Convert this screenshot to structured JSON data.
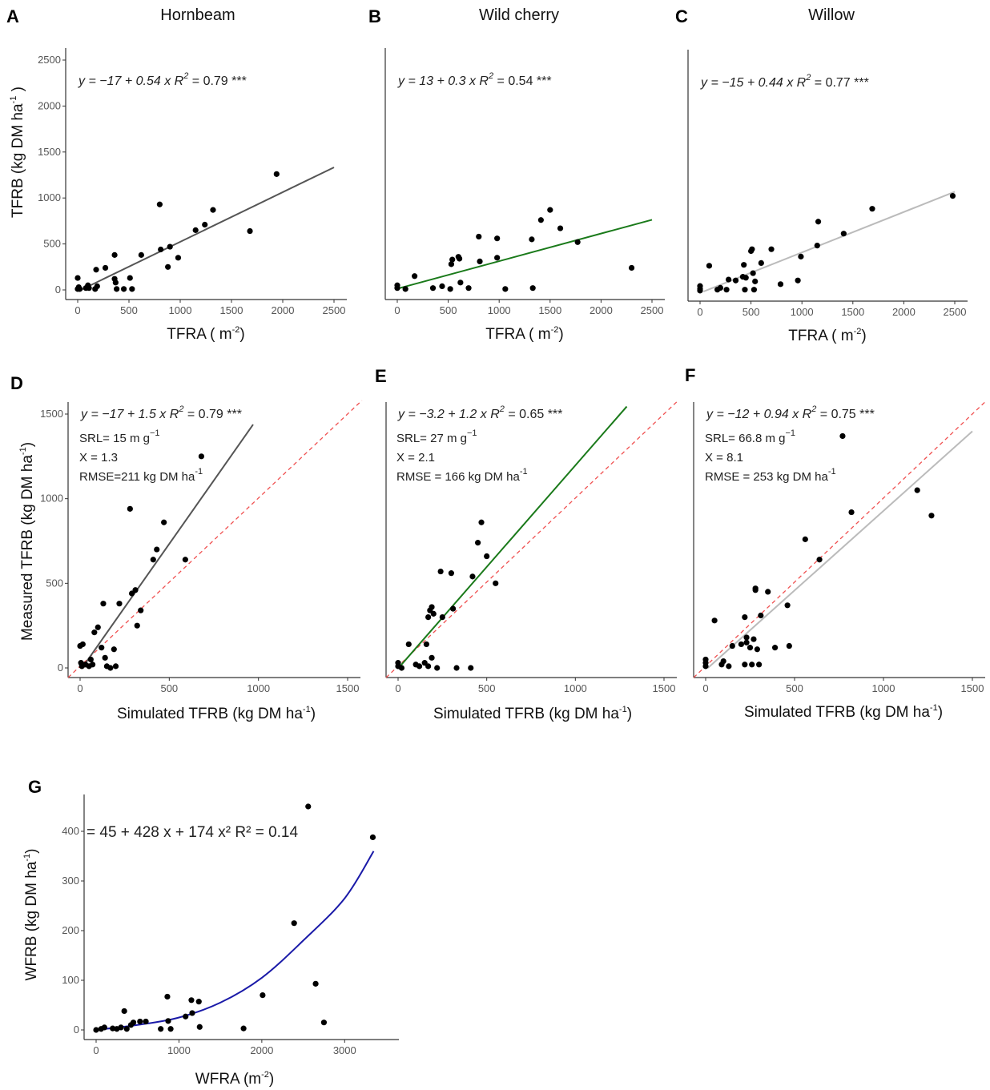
{
  "chart_data": [
    {
      "id": "A",
      "type": "scatter",
      "panel_letter": "A",
      "title": "Hornbeam",
      "xlabel": "TFRA",
      "xlabel_unit": "( m",
      "xlabel_sup": "-2",
      "xlabel_close": ")",
      "ylabel": "TFRB (kg DM ha",
      "ylabel_sup": "-1",
      "ylabel_close": " )",
      "xlim": [
        0,
        2500
      ],
      "ylim": [
        0,
        2500
      ],
      "xticks": [
        0,
        500,
        1000,
        1500,
        2000,
        2500
      ],
      "yticks": [
        0,
        500,
        1000,
        1500,
        2000,
        2500
      ],
      "xtick_labels": [
        "0",
        "500",
        "1000",
        "1500",
        "2000",
        "2500"
      ],
      "ytick_labels": [
        "0",
        "500",
        "1000",
        "1500",
        "2000",
        "2500"
      ],
      "equation": "y = −17 + 0.54 x",
      "r2_label": "R",
      "r2_sup": "2",
      "r2_value": "= 0.79 ***",
      "fit": {
        "intercept": -17,
        "slope": 0.54,
        "x_range": [
          0,
          2500
        ]
      },
      "fit_color": "#555555",
      "identity_line": false,
      "grid": false,
      "points": [
        [
          0,
          10
        ],
        [
          0,
          130
        ],
        [
          10,
          30
        ],
        [
          20,
          10
        ],
        [
          80,
          20
        ],
        [
          100,
          50
        ],
        [
          110,
          20
        ],
        [
          170,
          10
        ],
        [
          180,
          220
        ],
        [
          190,
          40
        ],
        [
          270,
          240
        ],
        [
          360,
          380
        ],
        [
          360,
          120
        ],
        [
          370,
          80
        ],
        [
          380,
          10
        ],
        [
          450,
          10
        ],
        [
          510,
          130
        ],
        [
          530,
          10
        ],
        [
          620,
          380
        ],
        [
          800,
          930
        ],
        [
          810,
          440
        ],
        [
          880,
          250
        ],
        [
          900,
          470
        ],
        [
          980,
          350
        ],
        [
          1150,
          650
        ],
        [
          1240,
          710
        ],
        [
          1320,
          870
        ],
        [
          1680,
          640
        ],
        [
          1940,
          1260
        ]
      ]
    },
    {
      "id": "B",
      "type": "scatter",
      "panel_letter": "B",
      "title": "Wild cherry",
      "xlabel": "TFRA",
      "xlabel_unit": "( m",
      "xlabel_sup": "-2",
      "xlabel_close": ")",
      "xlim": [
        0,
        2500
      ],
      "ylim": [
        0,
        2500
      ],
      "xticks": [
        0,
        500,
        1000,
        1500,
        2000,
        2500
      ],
      "xtick_labels": [
        "0",
        "500",
        "1000",
        "1500",
        "2000",
        "2500"
      ],
      "equation": "y = 13 + 0.3 x",
      "r2_label": "R",
      "r2_sup": "2",
      "r2_value": "= 0.54 ***",
      "fit": {
        "intercept": 13,
        "slope": 0.3,
        "x_range": [
          0,
          2500
        ]
      },
      "fit_color": "#1a7a1a",
      "identity_line": false,
      "grid": false,
      "points": [
        [
          0,
          50
        ],
        [
          0,
          20
        ],
        [
          80,
          10
        ],
        [
          170,
          150
        ],
        [
          350,
          20
        ],
        [
          440,
          40
        ],
        [
          520,
          10
        ],
        [
          530,
          280
        ],
        [
          540,
          330
        ],
        [
          600,
          360
        ],
        [
          610,
          340
        ],
        [
          620,
          80
        ],
        [
          700,
          20
        ],
        [
          800,
          580
        ],
        [
          810,
          310
        ],
        [
          980,
          560
        ],
        [
          980,
          350
        ],
        [
          1060,
          10
        ],
        [
          1320,
          550
        ],
        [
          1330,
          20
        ],
        [
          1410,
          760
        ],
        [
          1500,
          870
        ],
        [
          1600,
          670
        ],
        [
          1770,
          520
        ],
        [
          2300,
          240
        ]
      ]
    },
    {
      "id": "C",
      "type": "scatter",
      "panel_letter": "C",
      "title": "Willow",
      "xlabel": "TFRA",
      "xlabel_unit": "( m",
      "xlabel_sup": "-2",
      "xlabel_close": ")",
      "xlim": [
        0,
        2500
      ],
      "ylim": [
        0,
        2500
      ],
      "xticks": [
        0,
        500,
        1000,
        1500,
        2000,
        2500
      ],
      "xtick_labels": [
        "0",
        "500",
        "1000",
        "1500",
        "2000",
        "2500"
      ],
      "equation": "y = −15 + 0.44 x",
      "r2_label": "R",
      "r2_sup": "2",
      "r2_value": "= 0.77 ***",
      "fit": {
        "intercept": -15,
        "slope": 0.44,
        "x_range": [
          0,
          2500
        ]
      },
      "fit_color": "#bbbbbb",
      "identity_line": false,
      "grid": false,
      "points": [
        [
          0,
          30
        ],
        [
          0,
          10
        ],
        [
          0,
          60
        ],
        [
          90,
          280
        ],
        [
          170,
          20
        ],
        [
          200,
          40
        ],
        [
          260,
          20
        ],
        [
          280,
          130
        ],
        [
          350,
          120
        ],
        [
          420,
          160
        ],
        [
          430,
          290
        ],
        [
          440,
          20
        ],
        [
          450,
          150
        ],
        [
          500,
          440
        ],
        [
          510,
          460
        ],
        [
          520,
          200
        ],
        [
          530,
          20
        ],
        [
          540,
          110
        ],
        [
          600,
          310
        ],
        [
          700,
          460
        ],
        [
          790,
          80
        ],
        [
          960,
          120
        ],
        [
          990,
          380
        ],
        [
          1150,
          500
        ],
        [
          1160,
          760
        ],
        [
          1410,
          630
        ],
        [
          1690,
          900
        ],
        [
          2480,
          1040
        ]
      ]
    },
    {
      "id": "D",
      "type": "scatter",
      "panel_letter": "D",
      "xlabel": "Simulated TFRB (kg DM ha",
      "xlabel_sup": "-1",
      "xlabel_close": ")",
      "ylabel": "Measured TFRB (kg DM ha",
      "ylabel_sup": "-1",
      "ylabel_close": ")",
      "xlim": [
        0,
        1500
      ],
      "ylim": [
        0,
        1500
      ],
      "xticks": [
        0,
        500,
        1000,
        1500
      ],
      "yticks": [
        0,
        500,
        1000,
        1500
      ],
      "xtick_labels": [
        "0",
        "500",
        "1000",
        "1500"
      ],
      "ytick_labels": [
        "0",
        "500",
        "1000",
        "1500"
      ],
      "equation": "y = −17 + 1.5 x",
      "r2_label": "R",
      "r2_sup": "2",
      "r2_value": "= 0.79 ***",
      "annotations": [
        {
          "text": "SRL= 15 m g",
          "sup": "−1"
        },
        {
          "text": "X = 1.3",
          "sup": ""
        },
        {
          "text": "RMSE=211 kg DM ha",
          "sup": "-1"
        }
      ],
      "fit": {
        "intercept": -17,
        "slope": 1.5,
        "x_range": [
          0,
          970
        ]
      },
      "fit_color": "#555555",
      "identity_line": true,
      "identity_color": "#f05050",
      "grid": false,
      "points": [
        [
          0,
          130
        ],
        [
          5,
          30
        ],
        [
          10,
          10
        ],
        [
          15,
          140
        ],
        [
          30,
          20
        ],
        [
          50,
          10
        ],
        [
          60,
          50
        ],
        [
          70,
          20
        ],
        [
          80,
          210
        ],
        [
          100,
          240
        ],
        [
          120,
          120
        ],
        [
          130,
          380
        ],
        [
          140,
          60
        ],
        [
          150,
          10
        ],
        [
          170,
          0
        ],
        [
          190,
          110
        ],
        [
          200,
          10
        ],
        [
          220,
          380
        ],
        [
          280,
          940
        ],
        [
          290,
          440
        ],
        [
          310,
          460
        ],
        [
          320,
          250
        ],
        [
          340,
          340
        ],
        [
          410,
          640
        ],
        [
          430,
          700
        ],
        [
          470,
          860
        ],
        [
          590,
          640
        ],
        [
          680,
          1250
        ]
      ]
    },
    {
      "id": "E",
      "type": "scatter",
      "panel_letter": "E",
      "xlabel": "Simulated TFRB (kg DM ha",
      "xlabel_sup": "-1",
      "xlabel_close": ")",
      "xlim": [
        0,
        1500
      ],
      "ylim": [
        0,
        1500
      ],
      "xticks": [
        0,
        500,
        1000,
        1500
      ],
      "xtick_labels": [
        "0",
        "500",
        "1000",
        "1500"
      ],
      "equation": "y = −3.2 + 1.2 x",
      "r2_label": "R",
      "r2_sup": "2",
      "r2_value": "= 0.65 ***",
      "annotations": [
        {
          "text": "SRL= 27 m g",
          "sup": "−1"
        },
        {
          "text": "X = 2.1",
          "sup": ""
        },
        {
          "text": "RMSE = 166 kg DM ha",
          "sup": "-1"
        }
      ],
      "fit": {
        "intercept": -3.2,
        "slope": 1.2,
        "x_range": [
          0,
          1290
        ]
      },
      "fit_color": "#1a7a1a",
      "identity_line": true,
      "identity_color": "#f05050",
      "grid": false,
      "points": [
        [
          0,
          30
        ],
        [
          0,
          10
        ],
        [
          20,
          0
        ],
        [
          60,
          140
        ],
        [
          100,
          20
        ],
        [
          120,
          10
        ],
        [
          150,
          30
        ],
        [
          160,
          140
        ],
        [
          170,
          10
        ],
        [
          170,
          300
        ],
        [
          180,
          340
        ],
        [
          190,
          360
        ],
        [
          190,
          60
        ],
        [
          200,
          320
        ],
        [
          220,
          0
        ],
        [
          240,
          570
        ],
        [
          250,
          300
        ],
        [
          300,
          560
        ],
        [
          310,
          350
        ],
        [
          330,
          0
        ],
        [
          410,
          0
        ],
        [
          420,
          540
        ],
        [
          450,
          740
        ],
        [
          470,
          860
        ],
        [
          500,
          660
        ],
        [
          550,
          500
        ]
      ]
    },
    {
      "id": "F",
      "type": "scatter",
      "panel_letter": "F",
      "xlabel": "Simulated TFRB (kg DM ha",
      "xlabel_sup": "-1",
      "xlabel_close": ")",
      "xlim": [
        0,
        1500
      ],
      "ylim": [
        0,
        1500
      ],
      "xticks": [
        0,
        500,
        1000,
        1500
      ],
      "xtick_labels": [
        "0",
        "500",
        "1000",
        "1500"
      ],
      "equation": "y = −12 + 0.94 x",
      "r2_label": "R",
      "r2_sup": "2",
      "r2_value": "= 0.75 ***",
      "annotations": [
        {
          "text": "SRL= 66.8 m g",
          "sup": "−1"
        },
        {
          "text": "X = 8.1",
          "sup": ""
        },
        {
          "text": "RMSE = 253 kg DM ha",
          "sup": "-1"
        }
      ],
      "fit": {
        "intercept": -12,
        "slope": 0.94,
        "x_range": [
          0,
          1500
        ]
      },
      "fit_color": "#bbbbbb",
      "identity_line": true,
      "identity_color": "#f05050",
      "grid": false,
      "points": [
        [
          0,
          10
        ],
        [
          0,
          30
        ],
        [
          0,
          50
        ],
        [
          50,
          280
        ],
        [
          90,
          20
        ],
        [
          100,
          40
        ],
        [
          130,
          10
        ],
        [
          150,
          130
        ],
        [
          200,
          140
        ],
        [
          220,
          20
        ],
        [
          220,
          300
        ],
        [
          230,
          180
        ],
        [
          230,
          150
        ],
        [
          250,
          120
        ],
        [
          260,
          20
        ],
        [
          270,
          170
        ],
        [
          280,
          460
        ],
        [
          280,
          470
        ],
        [
          290,
          110
        ],
        [
          300,
          20
        ],
        [
          310,
          310
        ],
        [
          350,
          450
        ],
        [
          390,
          120
        ],
        [
          460,
          370
        ],
        [
          470,
          130
        ],
        [
          560,
          760
        ],
        [
          640,
          640
        ],
        [
          770,
          1370
        ],
        [
          820,
          920
        ],
        [
          1190,
          1050
        ],
        [
          1270,
          900
        ]
      ]
    },
    {
      "id": "G",
      "type": "scatter",
      "panel_letter": "G",
      "xlabel": "WFRA (m",
      "xlabel_sup": "-2",
      "xlabel_close": ")",
      "ylabel": "WFRB (kg DM ha",
      "ylabel_sup": "-1",
      "ylabel_close": ")",
      "xlim": [
        0,
        3500
      ],
      "ylim": [
        0,
        450
      ],
      "xticks": [
        0,
        1000,
        2000,
        3000
      ],
      "yticks": [
        0,
        100,
        200,
        300,
        400
      ],
      "xtick_labels": [
        "0",
        "1000",
        "2000",
        "3000"
      ],
      "ytick_labels": [
        "0",
        "100",
        "200",
        "300",
        "400"
      ],
      "equation": "= 45 + 428 x + 174 x²   R² = 0.14",
      "fit": {
        "type": "poly",
        "x_range": [
          0,
          3350
        ],
        "curve_y": [
          [
            0,
            0
          ],
          [
            500,
            10
          ],
          [
            1000,
            25
          ],
          [
            1500,
            55
          ],
          [
            2000,
            105
          ],
          [
            2500,
            180
          ],
          [
            3000,
            265
          ],
          [
            3350,
            360
          ]
        ]
      },
      "fit_color": "#1a1aa8",
      "identity_line": false,
      "grid": false,
      "points": [
        [
          0,
          0
        ],
        [
          60,
          2
        ],
        [
          100,
          5
        ],
        [
          200,
          3
        ],
        [
          250,
          2
        ],
        [
          300,
          5
        ],
        [
          340,
          38
        ],
        [
          370,
          2
        ],
        [
          420,
          10
        ],
        [
          450,
          15
        ],
        [
          530,
          17
        ],
        [
          600,
          17
        ],
        [
          780,
          2
        ],
        [
          860,
          67
        ],
        [
          870,
          18
        ],
        [
          900,
          2
        ],
        [
          1080,
          27
        ],
        [
          1150,
          60
        ],
        [
          1160,
          34
        ],
        [
          1240,
          57
        ],
        [
          1250,
          6
        ],
        [
          1780,
          3
        ],
        [
          2010,
          70
        ],
        [
          2390,
          215
        ],
        [
          2560,
          450
        ],
        [
          2650,
          93
        ],
        [
          2750,
          15
        ],
        [
          3340,
          388
        ]
      ]
    }
  ]
}
